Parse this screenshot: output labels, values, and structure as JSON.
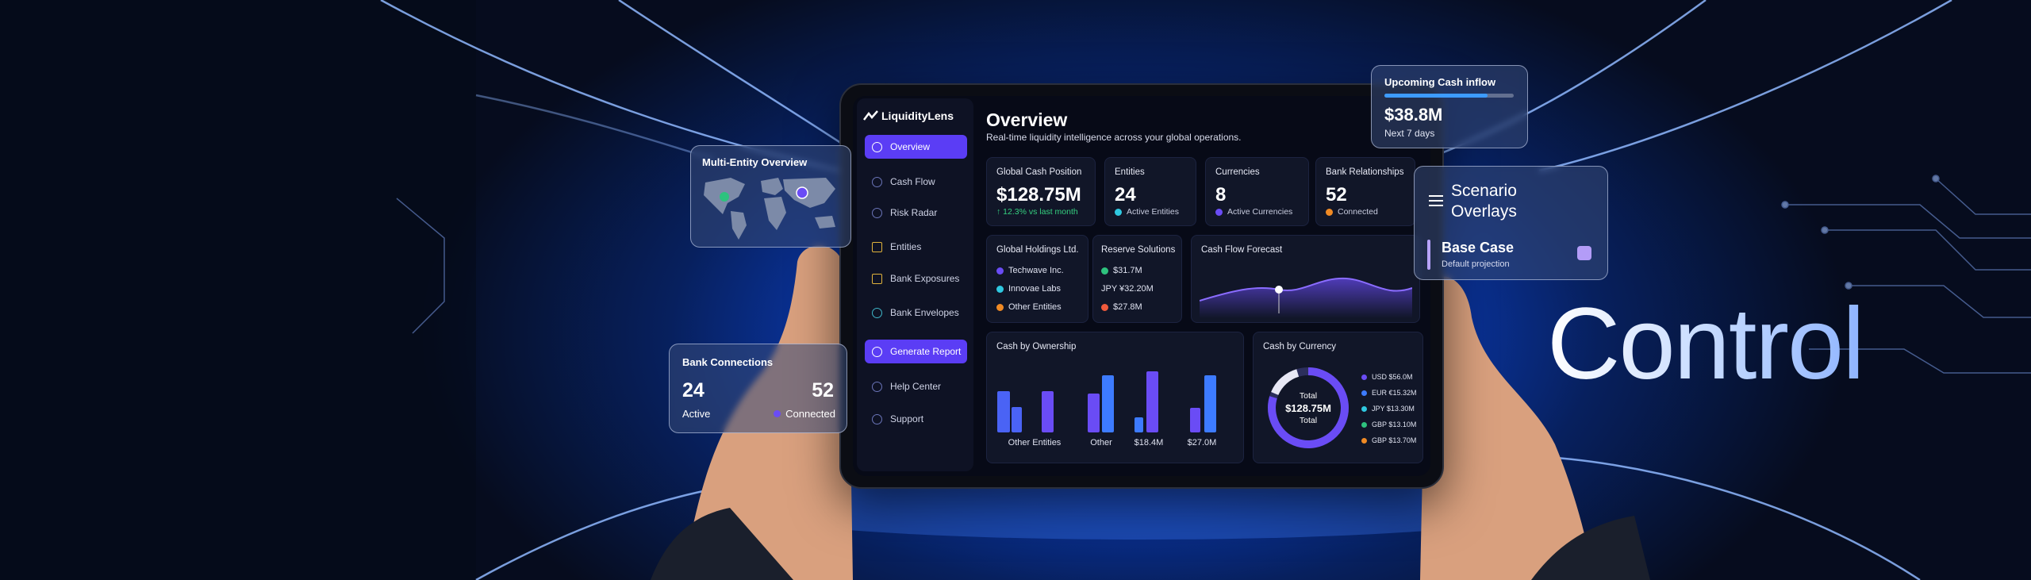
{
  "headline": "Control",
  "app": {
    "brand": "LiquidityLens",
    "nav": [
      "Overview",
      "Cash Flow",
      "Risk Radar",
      "Entities",
      "Bank Exposures",
      "Bank Envelopes",
      "Generate Report",
      "Help Center",
      "Support"
    ],
    "header": {
      "title": "Overview",
      "subtitle": "Real-time liquidity intelligence across your global operations."
    },
    "kpis": [
      {
        "label": "Global Cash Position",
        "value": "$128.75M",
        "note": "↑ 12.3% vs last month"
      },
      {
        "label": "Entities",
        "value": 24,
        "note": "Active Entities"
      },
      {
        "label": "Currencies",
        "value": 8,
        "note": "Active Currencies"
      },
      {
        "label": "Bank Relationships",
        "value": 52,
        "note": "Connected"
      }
    ],
    "holdings": {
      "title": "Global Holdings Ltd.",
      "items": [
        "Techwave Inc.",
        "Innovae Labs",
        "Other Entities"
      ]
    },
    "reserve": {
      "title": "Reserve Solutions",
      "items": [
        "$31.7M",
        "JPY ¥32.20M",
        "$27.8M"
      ]
    },
    "forecast": {
      "title": "Cash Flow Forecast"
    },
    "ownership": {
      "title": "Cash by Ownership",
      "labels": [
        "Other Entities",
        "Other",
        "$18.4M",
        "$27.0M"
      ]
    },
    "currency": {
      "title": "Cash by Currency",
      "total_top": "Total",
      "total_value": "$128.75M",
      "total_bottom": "Total",
      "legend": [
        "USD $56.0M",
        "EUR €15.32M",
        "JPY $13.30M",
        "GBP $13.10M",
        "GBP $13.70M"
      ]
    }
  },
  "cards": {
    "multi_entity": {
      "title": "Multi-Entity Overview"
    },
    "bank_connections": {
      "title": "Bank Connections",
      "active_value": 24,
      "active_label": "Active",
      "connected_value": 52,
      "connected_label": "Connected"
    },
    "upcoming": {
      "title": "Upcoming Cash inflow",
      "value": "$38.8M",
      "note": "Next 7 days"
    },
    "scenario": {
      "title": "Scenario Overlays",
      "option": "Base Case",
      "option_note": "Default projection"
    }
  }
}
